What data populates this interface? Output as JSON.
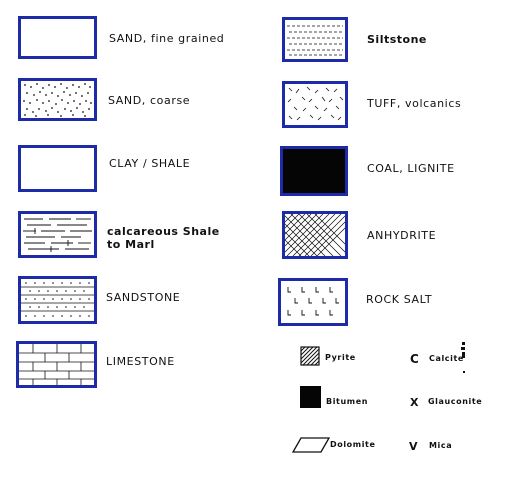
{
  "legend_left": [
    {
      "label": "SAND, fine grained",
      "pattern": "plain"
    },
    {
      "label": "SAND, coarse",
      "pattern": "dotted"
    },
    {
      "label": "CLAY / SHALE",
      "pattern": "plain"
    },
    {
      "label_lines": [
        "calcareous Shale",
        "to Marl"
      ],
      "pattern": "calcareous-shale"
    },
    {
      "label": "SANDSTONE",
      "pattern": "sandstone"
    },
    {
      "label": "LIMESTONE",
      "pattern": "limestone"
    }
  ],
  "legend_right": [
    {
      "label": "Siltstone",
      "pattern": "siltstone"
    },
    {
      "label": "TUFF, volcanics",
      "pattern": "tuff"
    },
    {
      "label": "COAL, LIGNITE",
      "pattern": "solid-black"
    },
    {
      "label": "ANHYDRITE",
      "pattern": "crosshatch"
    },
    {
      "label": "ROCK SALT",
      "pattern": "rock-salt"
    }
  ],
  "minerals": [
    {
      "label": "Pyrite",
      "icon": "hatched-square-icon"
    },
    {
      "label": "Bitumen",
      "icon": "black-square-icon"
    },
    {
      "label": "Dolomite",
      "icon": "rhombus-icon"
    }
  ],
  "letter_symbols": [
    {
      "letter": "C",
      "label": "Calcite"
    },
    {
      "letter": "X",
      "label": "Glauconite"
    },
    {
      "letter": "V",
      "label": "Mica"
    }
  ],
  "colors": {
    "frame": "#1e2ba8",
    "ink": "#111111"
  }
}
